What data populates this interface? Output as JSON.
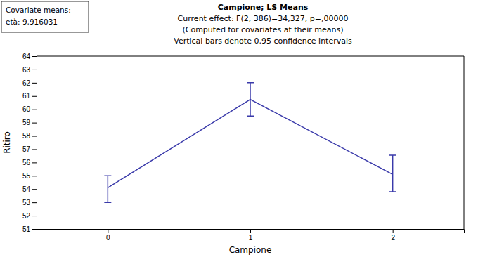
{
  "chart_data": {
    "type": "line",
    "title": "Campione; LS Means",
    "subtitle": [
      "Current effect: F(2, 386)=34,327, p=,00000",
      "(Computed for covariates at their means)",
      "Vertical bars denote 0,95 confidence intervals"
    ],
    "annotations": [
      "Covariate means:",
      "età: 9,916031"
    ],
    "x_label": "Campione",
    "y_label": "Ritiro",
    "x": [
      0,
      1,
      2
    ],
    "values": [
      54.1,
      60.75,
      55.1
    ],
    "error_lower": [
      1.1,
      1.25,
      1.3
    ],
    "error_upper": [
      0.9,
      1.25,
      1.45
    ],
    "color": "#3a3aaa",
    "xlim": [
      -0.5,
      2.5
    ],
    "xticks": [
      0,
      1,
      2
    ],
    "ylim": [
      51,
      64
    ],
    "yticks": [
      51,
      52,
      53,
      54,
      55,
      56,
      57,
      58,
      59,
      60,
      61,
      62,
      63,
      64
    ],
    "grid": false
  }
}
